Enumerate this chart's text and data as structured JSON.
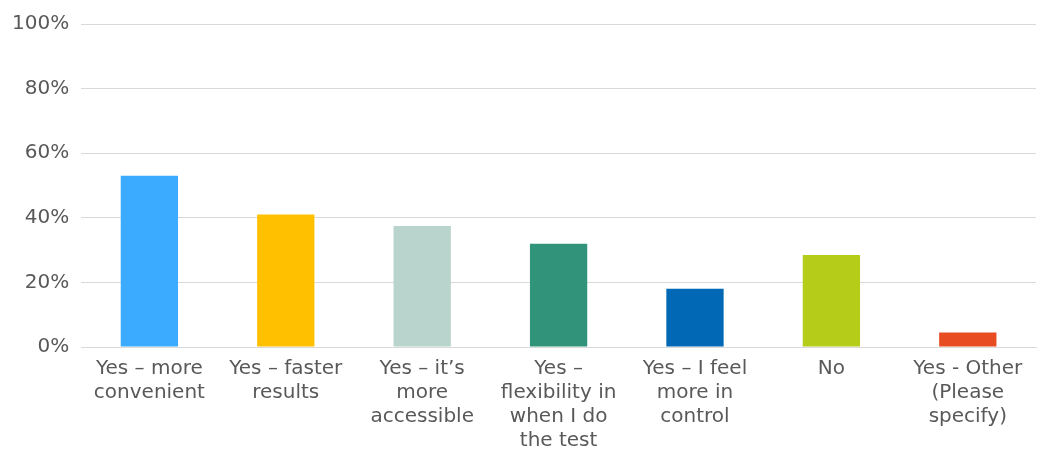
{
  "chart_data": {
    "type": "bar",
    "categories": [
      "Yes – more convenient",
      "Yes – faster results",
      "Yes – it’s more accessible",
      "Yes – flexibility in when I do the test",
      "Yes – I feel more in control",
      "No",
      "Yes - Other (Please specify)"
    ],
    "values": [
      53,
      41,
      37.5,
      32,
      18,
      28.5,
      4.5
    ],
    "colors": [
      "#3aabff",
      "#ffc000",
      "#b8d4cc",
      "#31937a",
      "#0068b4",
      "#b5cc18",
      "#e84c22"
    ],
    "ylim": [
      0,
      100
    ],
    "yticks": [
      {
        "value": 0,
        "label": "0%"
      },
      {
        "value": 20,
        "label": "20%"
      },
      {
        "value": 40,
        "label": "40%"
      },
      {
        "value": 60,
        "label": "60%"
      },
      {
        "value": 80,
        "label": "80%"
      },
      {
        "value": 100,
        "label": "100%"
      }
    ],
    "grid": "y"
  }
}
